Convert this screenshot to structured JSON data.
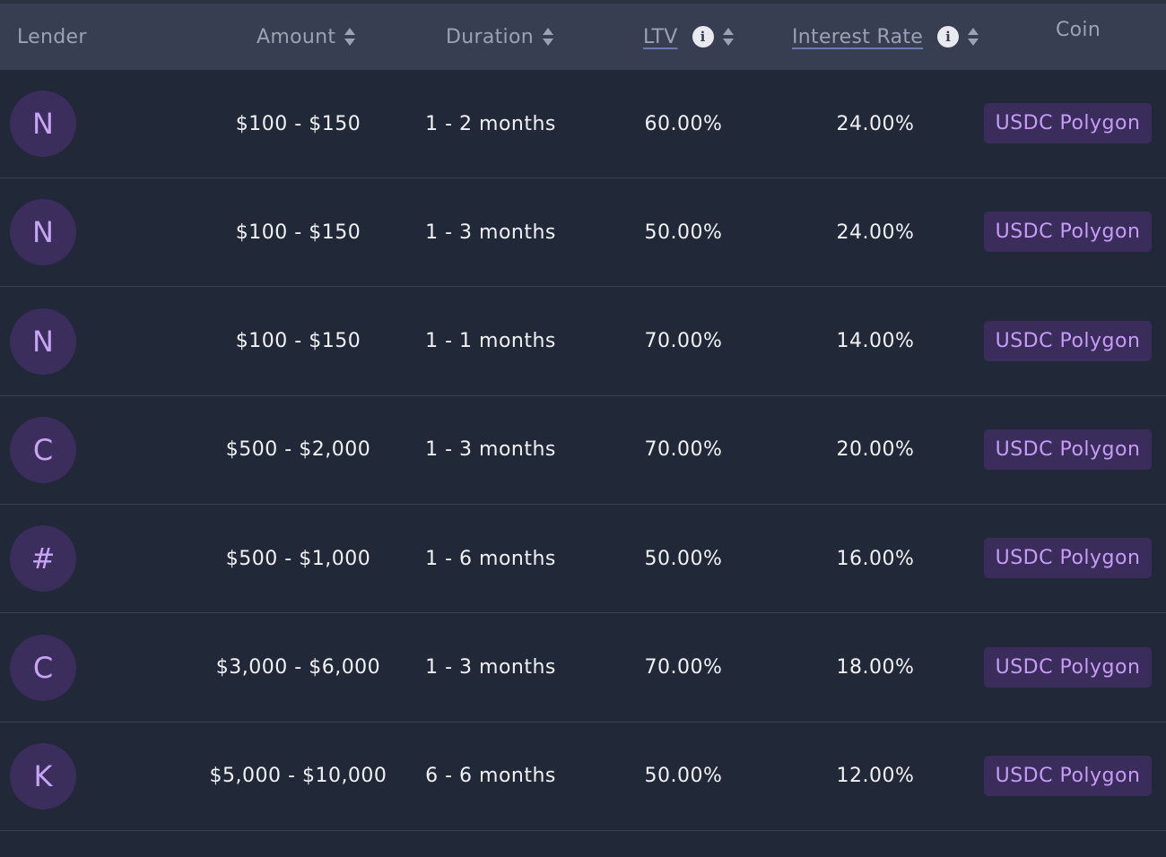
{
  "header": {
    "lender": "Lender",
    "amount": "Amount",
    "duration": "Duration",
    "ltv": "LTV",
    "interest_rate": "Interest Rate",
    "coin": "Coin"
  },
  "icons": {
    "sort": "sort-icon",
    "info": "info-icon"
  },
  "colors": {
    "accent": "#c79bf6",
    "badge_bg": "#3a2d5c",
    "header_bg": "#373e51",
    "row_bg": "#212837"
  },
  "rows": [
    {
      "initial": "N",
      "amount": "$100 - $150",
      "duration": "1 - 2 months",
      "ltv": "60.00%",
      "interest_rate": "24.00%",
      "coin": "USDC Polygon"
    },
    {
      "initial": "N",
      "amount": "$100 - $150",
      "duration": "1 - 3 months",
      "ltv": "50.00%",
      "interest_rate": "24.00%",
      "coin": "USDC Polygon"
    },
    {
      "initial": "N",
      "amount": "$100 - $150",
      "duration": "1 - 1 months",
      "ltv": "70.00%",
      "interest_rate": "14.00%",
      "coin": "USDC Polygon"
    },
    {
      "initial": "C",
      "amount": "$500 - $2,000",
      "duration": "1 - 3 months",
      "ltv": "70.00%",
      "interest_rate": "20.00%",
      "coin": "USDC Polygon"
    },
    {
      "initial": "#",
      "amount": "$500 - $1,000",
      "duration": "1 - 6 months",
      "ltv": "50.00%",
      "interest_rate": "16.00%",
      "coin": "USDC Polygon"
    },
    {
      "initial": "C",
      "amount": "$3,000 - $6,000",
      "duration": "1 - 3 months",
      "ltv": "70.00%",
      "interest_rate": "18.00%",
      "coin": "USDC Polygon"
    },
    {
      "initial": "K",
      "amount": "$5,000 - $10,000",
      "duration": "6 - 6 months",
      "ltv": "50.00%",
      "interest_rate": "12.00%",
      "coin": "USDC Polygon"
    }
  ]
}
